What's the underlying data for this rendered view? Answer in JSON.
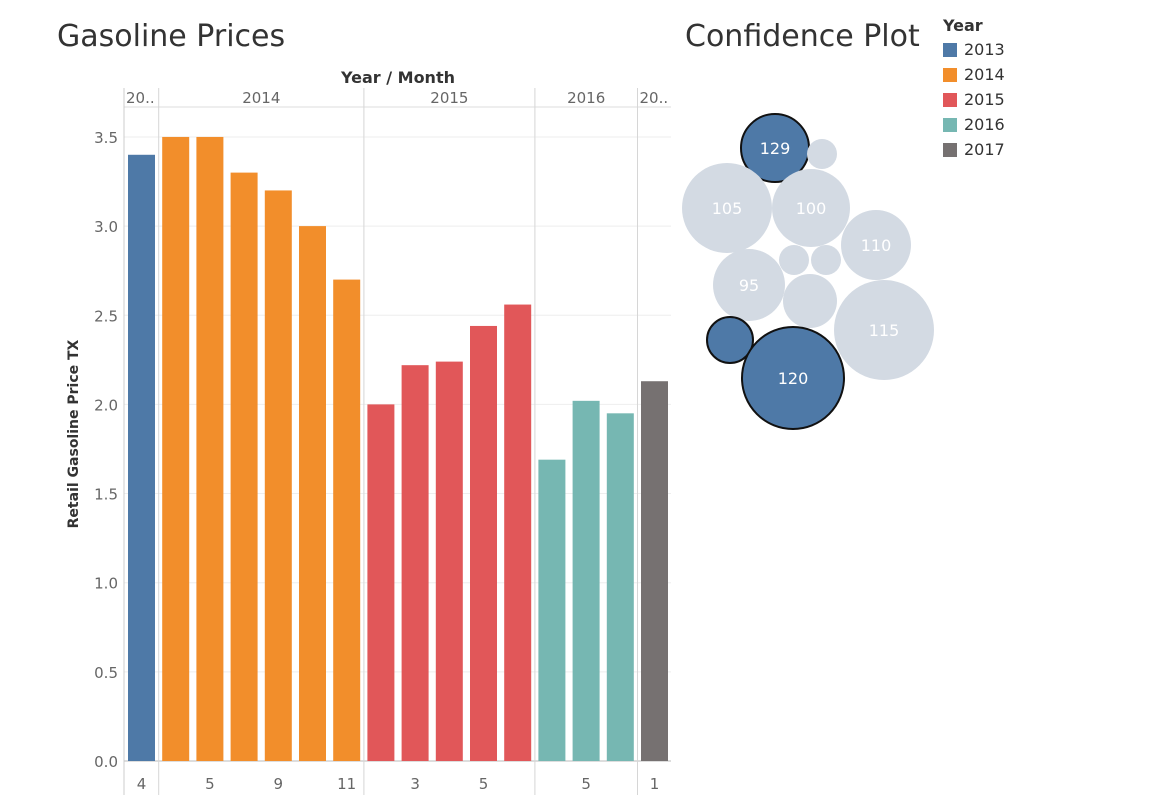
{
  "titles": {
    "left": "Gasoline Prices",
    "right": "Confidence Plot"
  },
  "chart_data": [
    {
      "type": "bar",
      "title": "Gasoline Prices",
      "xlabel": "Year / Month",
      "ylabel": "Retail Gasoline Price TX",
      "ylim": [
        0,
        3.6
      ],
      "yticks": [
        "0.0",
        "0.5",
        "1.0",
        "1.5",
        "2.0",
        "2.5",
        "3.0",
        "3.5"
      ],
      "grid": true,
      "year_headers": [
        "20..",
        "2014",
        "2015",
        "2016",
        "20.."
      ],
      "groups": [
        {
          "year": "2013",
          "color": "#4e79a7",
          "values": [
            3.4
          ],
          "tick_labels": [
            "4"
          ]
        },
        {
          "year": "2014",
          "color": "#f28e2b",
          "values": [
            3.5,
            3.5,
            3.3,
            3.2,
            3.0,
            2.7
          ],
          "tick_labels": [
            "",
            "5",
            "",
            "9",
            "",
            "11"
          ]
        },
        {
          "year": "2015",
          "color": "#e15759",
          "values": [
            2.0,
            2.22,
            2.24,
            2.44,
            2.56
          ],
          "tick_labels": [
            "",
            "3",
            "",
            "5",
            ""
          ]
        },
        {
          "year": "2016",
          "color": "#76b7b2",
          "values": [
            1.69,
            2.02,
            1.95
          ],
          "tick_labels": [
            "",
            "5",
            ""
          ]
        },
        {
          "year": "2017",
          "color": "#767171",
          "values": [
            2.13
          ],
          "tick_labels": [
            "1"
          ]
        }
      ]
    },
    {
      "type": "bubble",
      "title": "Confidence Plot",
      "bubbles": [
        {
          "label": "129",
          "highlighted": true
        },
        {
          "label": "",
          "highlighted": false
        },
        {
          "label": "105",
          "highlighted": false
        },
        {
          "label": "100",
          "highlighted": false
        },
        {
          "label": "110",
          "highlighted": false
        },
        {
          "label": "",
          "highlighted": false
        },
        {
          "label": "",
          "highlighted": false
        },
        {
          "label": "95",
          "highlighted": false
        },
        {
          "label": "",
          "highlighted": false
        },
        {
          "label": "115",
          "highlighted": false
        },
        {
          "label": "",
          "highlighted": true
        },
        {
          "label": "120",
          "highlighted": true
        }
      ],
      "highlight_color": "#4e79a7",
      "muted_color": "#d3dae3"
    }
  ],
  "legend": {
    "title": "Year",
    "items": [
      {
        "label": "2013",
        "color": "#4e79a7"
      },
      {
        "label": "2014",
        "color": "#f28e2b"
      },
      {
        "label": "2015",
        "color": "#e15759"
      },
      {
        "label": "2016",
        "color": "#76b7b2"
      },
      {
        "label": "2017",
        "color": "#767171"
      }
    ]
  }
}
